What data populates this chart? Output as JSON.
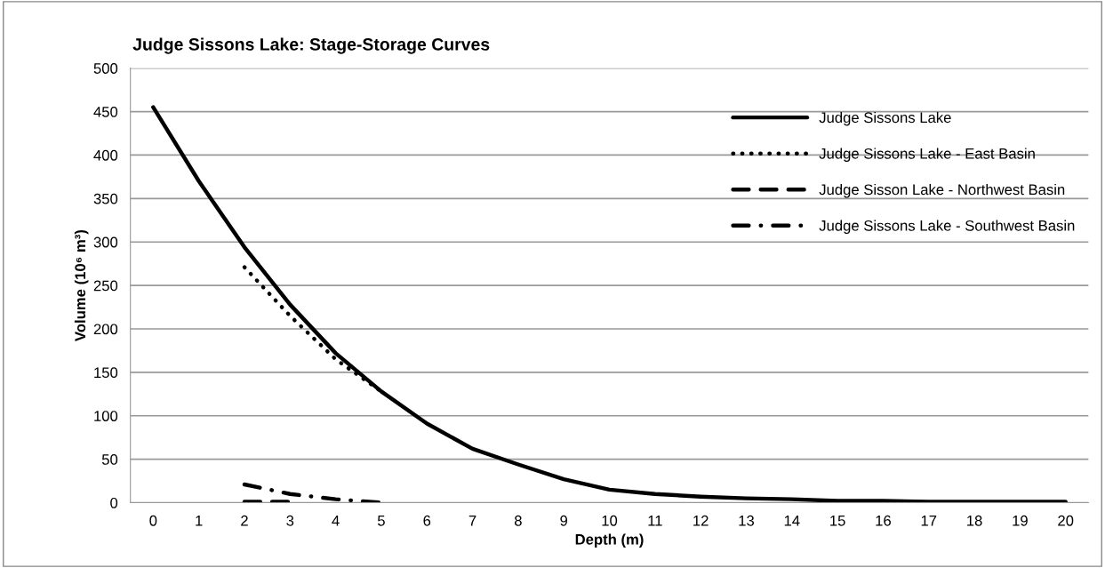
{
  "chart_data": {
    "type": "line",
    "title": "Judge Sissons Lake: Stage-Storage Curves",
    "xlabel": "Depth (m)",
    "ylabel": "Volume (10⁶ m³)",
    "xlim": [
      -0.5,
      20.5
    ],
    "xticks": [
      0,
      1,
      2,
      3,
      4,
      5,
      6,
      7,
      8,
      9,
      10,
      11,
      12,
      13,
      14,
      15,
      16,
      17,
      18,
      19,
      20
    ],
    "ylim": [
      0,
      500
    ],
    "yticks": [
      0,
      50,
      100,
      150,
      200,
      250,
      300,
      350,
      400,
      450,
      500
    ],
    "grid": "y",
    "legend": "top right",
    "marker": "none",
    "series": [
      {
        "name": "Judge Sissons Lake",
        "color": "#000000",
        "line_style": "solid",
        "x": [
          0,
          1,
          2,
          3,
          4,
          5,
          6,
          7,
          8,
          9,
          10,
          11,
          12,
          13,
          14,
          15,
          16,
          17,
          18,
          19,
          20
        ],
        "values": [
          455,
          370,
          294,
          228,
          172,
          128,
          91,
          62,
          44,
          27,
          15,
          10,
          7,
          5,
          4,
          2,
          2,
          1,
          1,
          1,
          1
        ]
      },
      {
        "name": "Judge Sissons Lake - East Basin",
        "color": "#000000",
        "line_style": "dotted",
        "x": [
          2,
          3,
          4,
          5
        ],
        "values": [
          271,
          215,
          165,
          128
        ]
      },
      {
        "name": "Judge Sisson Lake - Northwest Basin",
        "color": "#000000",
        "line_style": "dashed",
        "x": [
          2,
          3
        ],
        "values": [
          1,
          1
        ]
      },
      {
        "name": "Judge Sissons Lake - Southwest Basin",
        "color": "#000000",
        "line_style": "dashdot",
        "x": [
          2,
          3,
          4,
          5
        ],
        "values": [
          21,
          10,
          4,
          0
        ]
      }
    ]
  }
}
